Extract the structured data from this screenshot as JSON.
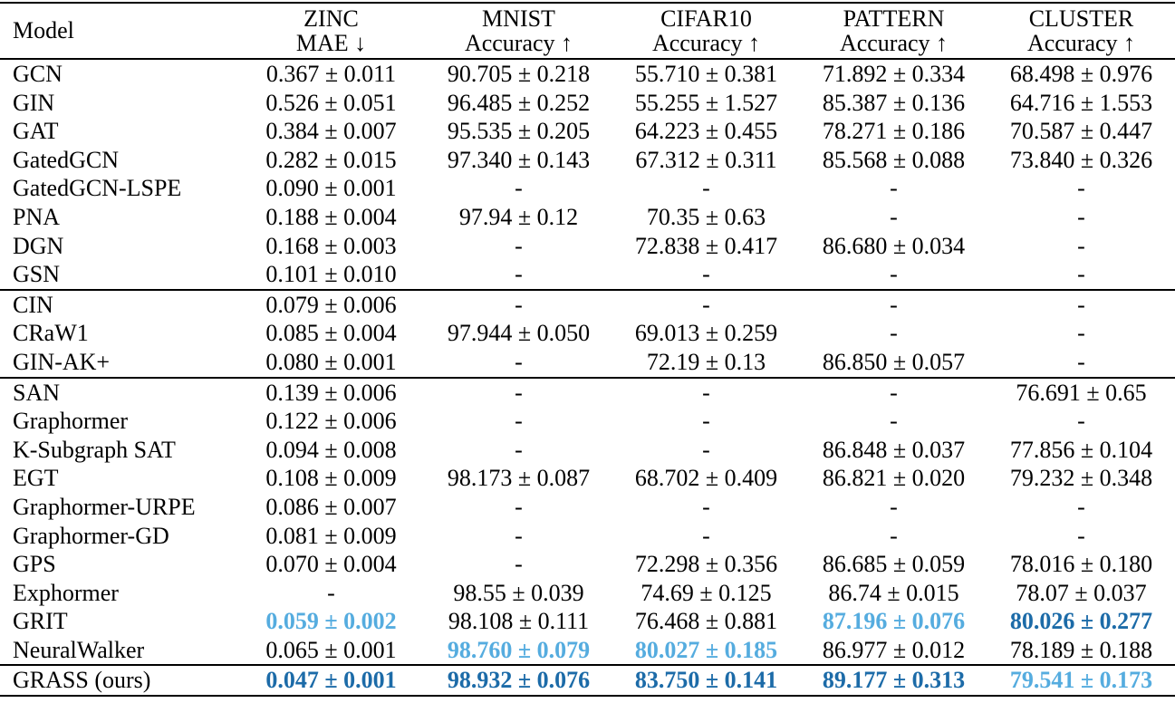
{
  "table": {
    "model_header": "Model",
    "highlight_colors": {
      "best": "#1C6BA8",
      "second_best": "#55ACDF"
    },
    "columns": [
      {
        "name": "ZINC",
        "metric": "MAE",
        "arrow": "↓"
      },
      {
        "name": "MNIST",
        "metric": "Accuracy",
        "arrow": "↑"
      },
      {
        "name": "CIFAR10",
        "metric": "Accuracy",
        "arrow": "↑"
      },
      {
        "name": "PATTERN",
        "metric": "Accuracy",
        "arrow": "↑"
      },
      {
        "name": "CLUSTER",
        "metric": "Accuracy",
        "arrow": "↑"
      }
    ],
    "groups": [
      {
        "rows": [
          {
            "model": "GCN",
            "cells": [
              {
                "value": "0.367 ± 0.011",
                "highlight": "none"
              },
              {
                "value": "90.705 ± 0.218",
                "highlight": "none"
              },
              {
                "value": "55.710 ± 0.381",
                "highlight": "none"
              },
              {
                "value": "71.892 ± 0.334",
                "highlight": "none"
              },
              {
                "value": "68.498 ± 0.976",
                "highlight": "none"
              }
            ]
          },
          {
            "model": "GIN",
            "cells": [
              {
                "value": "0.526 ± 0.051",
                "highlight": "none"
              },
              {
                "value": "96.485 ± 0.252",
                "highlight": "none"
              },
              {
                "value": "55.255 ± 1.527",
                "highlight": "none"
              },
              {
                "value": "85.387 ± 0.136",
                "highlight": "none"
              },
              {
                "value": "64.716 ± 1.553",
                "highlight": "none"
              }
            ]
          },
          {
            "model": "GAT",
            "cells": [
              {
                "value": "0.384 ± 0.007",
                "highlight": "none"
              },
              {
                "value": "95.535 ± 0.205",
                "highlight": "none"
              },
              {
                "value": "64.223 ± 0.455",
                "highlight": "none"
              },
              {
                "value": "78.271 ± 0.186",
                "highlight": "none"
              },
              {
                "value": "70.587 ± 0.447",
                "highlight": "none"
              }
            ]
          },
          {
            "model": "GatedGCN",
            "cells": [
              {
                "value": "0.282 ± 0.015",
                "highlight": "none"
              },
              {
                "value": "97.340 ± 0.143",
                "highlight": "none"
              },
              {
                "value": "67.312 ± 0.311",
                "highlight": "none"
              },
              {
                "value": "85.568 ± 0.088",
                "highlight": "none"
              },
              {
                "value": "73.840 ± 0.326",
                "highlight": "none"
              }
            ]
          },
          {
            "model": "GatedGCN-LSPE",
            "cells": [
              {
                "value": "0.090 ± 0.001",
                "highlight": "none"
              },
              {
                "value": "-",
                "highlight": "none"
              },
              {
                "value": "-",
                "highlight": "none"
              },
              {
                "value": "-",
                "highlight": "none"
              },
              {
                "value": "-",
                "highlight": "none"
              }
            ]
          },
          {
            "model": "PNA",
            "cells": [
              {
                "value": "0.188 ± 0.004",
                "highlight": "none"
              },
              {
                "value": "97.94 ± 0.12",
                "highlight": "none"
              },
              {
                "value": "70.35 ± 0.63",
                "highlight": "none"
              },
              {
                "value": "-",
                "highlight": "none"
              },
              {
                "value": "-",
                "highlight": "none"
              }
            ]
          },
          {
            "model": "DGN",
            "cells": [
              {
                "value": "0.168 ± 0.003",
                "highlight": "none"
              },
              {
                "value": "-",
                "highlight": "none"
              },
              {
                "value": "72.838 ± 0.417",
                "highlight": "none"
              },
              {
                "value": "86.680 ± 0.034",
                "highlight": "none"
              },
              {
                "value": "-",
                "highlight": "none"
              }
            ]
          },
          {
            "model": "GSN",
            "cells": [
              {
                "value": "0.101 ± 0.010",
                "highlight": "none"
              },
              {
                "value": "-",
                "highlight": "none"
              },
              {
                "value": "-",
                "highlight": "none"
              },
              {
                "value": "-",
                "highlight": "none"
              },
              {
                "value": "-",
                "highlight": "none"
              }
            ]
          }
        ]
      },
      {
        "rows": [
          {
            "model": "CIN",
            "cells": [
              {
                "value": "0.079 ± 0.006",
                "highlight": "none"
              },
              {
                "value": "-",
                "highlight": "none"
              },
              {
                "value": "-",
                "highlight": "none"
              },
              {
                "value": "-",
                "highlight": "none"
              },
              {
                "value": "-",
                "highlight": "none"
              }
            ]
          },
          {
            "model": "CRaW1",
            "cells": [
              {
                "value": "0.085 ± 0.004",
                "highlight": "none"
              },
              {
                "value": "97.944 ± 0.050",
                "highlight": "none"
              },
              {
                "value": "69.013 ± 0.259",
                "highlight": "none"
              },
              {
                "value": "-",
                "highlight": "none"
              },
              {
                "value": "-",
                "highlight": "none"
              }
            ]
          },
          {
            "model": "GIN-AK+",
            "cells": [
              {
                "value": "0.080 ± 0.001",
                "highlight": "none"
              },
              {
                "value": "-",
                "highlight": "none"
              },
              {
                "value": "72.19 ± 0.13",
                "highlight": "none"
              },
              {
                "value": "86.850 ± 0.057",
                "highlight": "none"
              },
              {
                "value": "-",
                "highlight": "none"
              }
            ]
          }
        ]
      },
      {
        "rows": [
          {
            "model": "SAN",
            "cells": [
              {
                "value": "0.139 ± 0.006",
                "highlight": "none"
              },
              {
                "value": "-",
                "highlight": "none"
              },
              {
                "value": "-",
                "highlight": "none"
              },
              {
                "value": "-",
                "highlight": "none"
              },
              {
                "value": "76.691 ± 0.65",
                "highlight": "none"
              }
            ]
          },
          {
            "model": "Graphormer",
            "cells": [
              {
                "value": "0.122 ± 0.006",
                "highlight": "none"
              },
              {
                "value": "-",
                "highlight": "none"
              },
              {
                "value": "-",
                "highlight": "none"
              },
              {
                "value": "-",
                "highlight": "none"
              },
              {
                "value": "-",
                "highlight": "none"
              }
            ]
          },
          {
            "model": "K-Subgraph SAT",
            "cells": [
              {
                "value": "0.094 ± 0.008",
                "highlight": "none"
              },
              {
                "value": "-",
                "highlight": "none"
              },
              {
                "value": "-",
                "highlight": "none"
              },
              {
                "value": "86.848 ± 0.037",
                "highlight": "none"
              },
              {
                "value": "77.856 ± 0.104",
                "highlight": "none"
              }
            ]
          },
          {
            "model": "EGT",
            "cells": [
              {
                "value": "0.108 ± 0.009",
                "highlight": "none"
              },
              {
                "value": "98.173 ± 0.087",
                "highlight": "none"
              },
              {
                "value": "68.702 ± 0.409",
                "highlight": "none"
              },
              {
                "value": "86.821 ± 0.020",
                "highlight": "none"
              },
              {
                "value": "79.232 ± 0.348",
                "highlight": "none"
              }
            ]
          },
          {
            "model": "Graphormer-URPE",
            "cells": [
              {
                "value": "0.086 ± 0.007",
                "highlight": "none"
              },
              {
                "value": "-",
                "highlight": "none"
              },
              {
                "value": "-",
                "highlight": "none"
              },
              {
                "value": "-",
                "highlight": "none"
              },
              {
                "value": "-",
                "highlight": "none"
              }
            ]
          },
          {
            "model": "Graphormer-GD",
            "cells": [
              {
                "value": "0.081 ± 0.009",
                "highlight": "none"
              },
              {
                "value": "-",
                "highlight": "none"
              },
              {
                "value": "-",
                "highlight": "none"
              },
              {
                "value": "-",
                "highlight": "none"
              },
              {
                "value": "-",
                "highlight": "none"
              }
            ]
          },
          {
            "model": "GPS",
            "cells": [
              {
                "value": "0.070 ± 0.004",
                "highlight": "none"
              },
              {
                "value": "-",
                "highlight": "none"
              },
              {
                "value": "72.298 ± 0.356",
                "highlight": "none"
              },
              {
                "value": "86.685 ± 0.059",
                "highlight": "none"
              },
              {
                "value": "78.016 ± 0.180",
                "highlight": "none"
              }
            ]
          },
          {
            "model": "Exphormer",
            "cells": [
              {
                "value": "-",
                "highlight": "none"
              },
              {
                "value": "98.55 ± 0.039",
                "highlight": "none"
              },
              {
                "value": "74.69 ± 0.125",
                "highlight": "none"
              },
              {
                "value": "86.74 ± 0.015",
                "highlight": "none"
              },
              {
                "value": "78.07 ± 0.037",
                "highlight": "none"
              }
            ]
          },
          {
            "model": "GRIT",
            "cells": [
              {
                "value": "0.059 ± 0.002",
                "highlight": "second"
              },
              {
                "value": "98.108 ± 0.111",
                "highlight": "none"
              },
              {
                "value": "76.468 ± 0.881",
                "highlight": "none"
              },
              {
                "value": "87.196 ± 0.076",
                "highlight": "second"
              },
              {
                "value": "80.026 ± 0.277",
                "highlight": "best"
              }
            ]
          },
          {
            "model": "NeuralWalker",
            "cells": [
              {
                "value": "0.065 ± 0.001",
                "highlight": "none"
              },
              {
                "value": "98.760 ± 0.079",
                "highlight": "second"
              },
              {
                "value": "80.027 ± 0.185",
                "highlight": "second"
              },
              {
                "value": "86.977 ± 0.012",
                "highlight": "none"
              },
              {
                "value": "78.189 ± 0.188",
                "highlight": "none"
              }
            ]
          }
        ]
      },
      {
        "rows": [
          {
            "model": "GRASS (ours)",
            "cells": [
              {
                "value": "0.047 ± 0.001",
                "highlight": "best"
              },
              {
                "value": "98.932 ± 0.076",
                "highlight": "best"
              },
              {
                "value": "83.750 ± 0.141",
                "highlight": "best"
              },
              {
                "value": "89.177 ± 0.313",
                "highlight": "best"
              },
              {
                "value": "79.541 ± 0.173",
                "highlight": "second"
              }
            ]
          }
        ]
      }
    ]
  }
}
